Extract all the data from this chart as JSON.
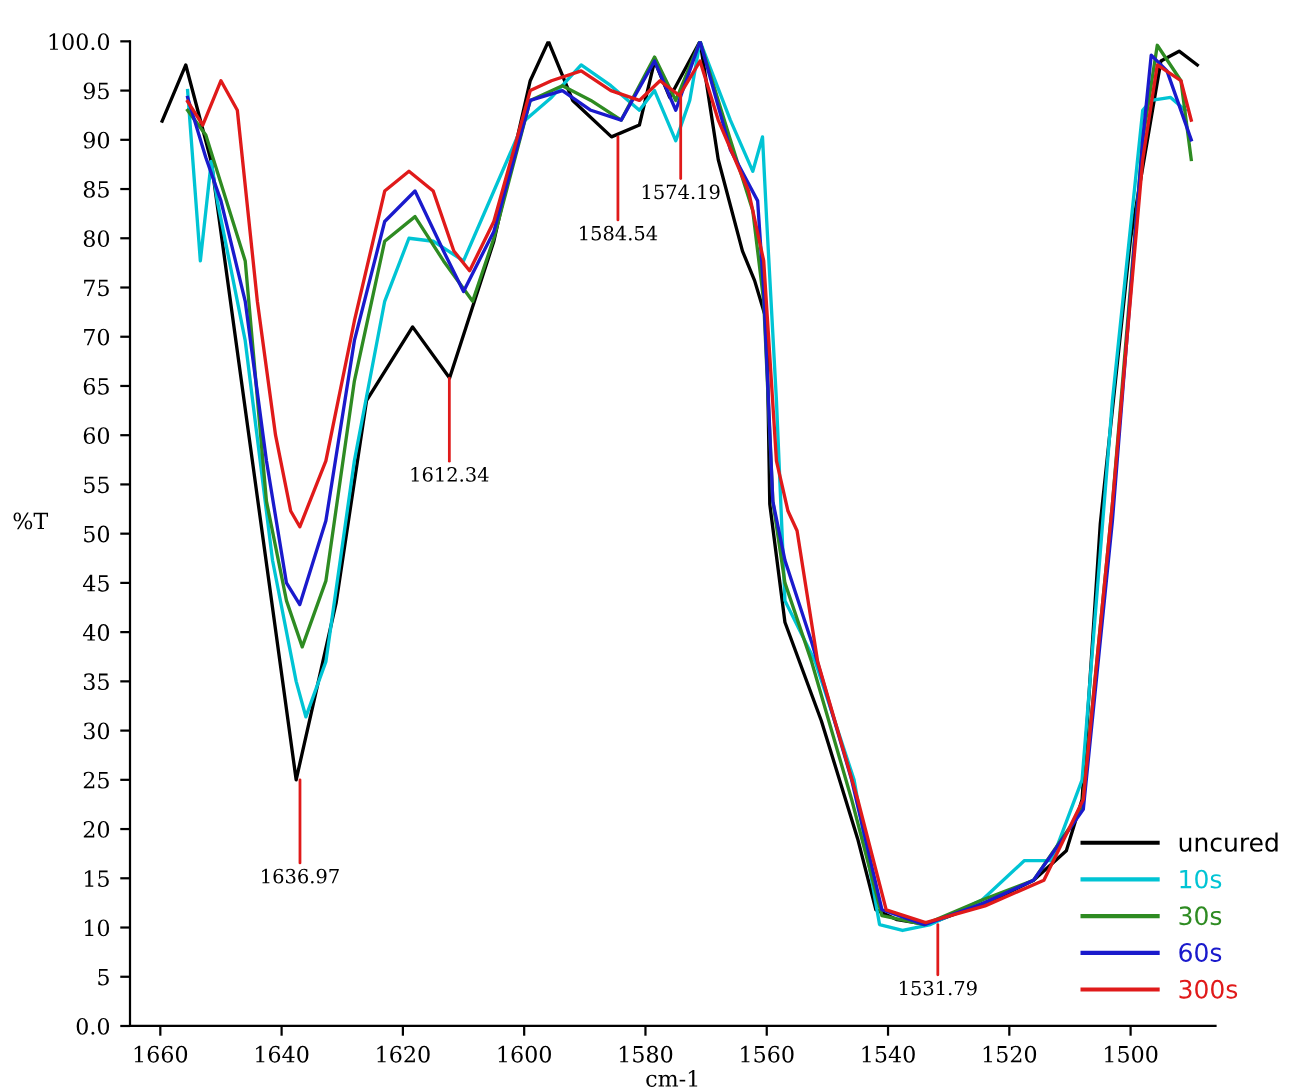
{
  "chart_data": {
    "type": "line",
    "xlabel": "cm-1",
    "ylabel": "%T",
    "xlim": [
      1665,
      1486
    ],
    "ylim": [
      0,
      100
    ],
    "xticks": [
      1660,
      1640,
      1620,
      1600,
      1580,
      1560,
      1540,
      1520,
      1500
    ],
    "yticks": [
      {
        "value": 0,
        "label": "0.0"
      },
      5,
      10,
      15,
      20,
      25,
      30,
      35,
      40,
      45,
      50,
      55,
      60,
      65,
      70,
      75,
      80,
      85,
      90,
      95,
      {
        "value": 100,
        "label": "100.0"
      }
    ],
    "grid": false,
    "legend": "bottom right",
    "marker": "none",
    "line_style": "solid",
    "series": [
      {
        "name": "uncured",
        "color": "#000000",
        "x": [
          1659.7,
          1655.8,
          1651.6,
          1637.6,
          1631,
          1626,
          1618.4,
          1612.3,
          1605,
          1599,
          1596,
          1592,
          1585.6,
          1581,
          1578.5,
          1576,
          1571,
          1568,
          1564,
          1562,
          1560,
          1559.5,
          1557,
          1551,
          1545,
          1542,
          1538.5,
          1533.5,
          1522,
          1516,
          1510.6,
          1508,
          1505,
          1500,
          1495,
          1492,
          1489
        ],
        "values": [
          91.9,
          97.6,
          87.8,
          25,
          43,
          63.5,
          71,
          65.8,
          79.7,
          96,
          100,
          94,
          90.3,
          91.5,
          98,
          94.3,
          100,
          88,
          78.7,
          75.7,
          71.6,
          53,
          41,
          31,
          19,
          11.8,
          10.8,
          10.3,
          13,
          14.8,
          17.8,
          23,
          51,
          80,
          98,
          99,
          97.6
        ]
      },
      {
        "name": "10s",
        "color": "#00c4d4",
        "x": [
          1655.5,
          1653.4,
          1651.6,
          1650.6,
          1646,
          1641.5,
          1637.6,
          1636,
          1632.7,
          1628,
          1623,
          1619,
          1615,
          1610,
          1605,
          1600,
          1595.5,
          1590.6,
          1585.7,
          1581,
          1578.5,
          1575,
          1572.7,
          1571,
          1566,
          1562.3,
          1560.7,
          1560,
          1558.4,
          1557,
          1552,
          1545.6,
          1541.4,
          1537.6,
          1533,
          1524.5,
          1517.5,
          1513,
          1508,
          1503,
          1498,
          1496.6,
          1493.4,
          1491
        ],
        "values": [
          95,
          77.7,
          87.8,
          83.8,
          69.6,
          47.3,
          35,
          31.4,
          37,
          57.4,
          73.6,
          80,
          79.7,
          77.7,
          84.8,
          91.9,
          94.3,
          97.6,
          95.5,
          93,
          95,
          89.9,
          94,
          100,
          92,
          86.8,
          90.3,
          81.7,
          63.5,
          43.2,
          37,
          25,
          10.3,
          9.7,
          10.3,
          12.8,
          16.8,
          16.8,
          25,
          63.5,
          93,
          94,
          94.3,
          93
        ]
      },
      {
        "name": "30s",
        "color": "#2e8b22",
        "x": [
          1655.5,
          1652.5,
          1646,
          1642.5,
          1639.2,
          1636.6,
          1632.7,
          1628,
          1623,
          1618,
          1613.3,
          1608.5,
          1605,
          1599,
          1593.7,
          1589,
          1584,
          1578.5,
          1575,
          1571,
          1566,
          1562.3,
          1560.5,
          1559,
          1557,
          1552.6,
          1546,
          1541,
          1534,
          1524.5,
          1516,
          1508,
          1503,
          1498,
          1495.6,
          1491.7,
          1490
        ],
        "values": [
          93,
          90.5,
          77.7,
          53.3,
          43.2,
          38.5,
          45.2,
          65.5,
          79.7,
          82.2,
          77.7,
          73.6,
          80,
          94,
          95.5,
          94,
          92,
          98.4,
          94,
          100,
          90,
          82.8,
          73.6,
          53.3,
          45,
          37,
          23,
          11.2,
          10.3,
          12.8,
          14.8,
          22,
          53,
          90,
          99.6,
          96,
          88
        ]
      },
      {
        "name": "60s",
        "color": "#1a1acc",
        "x": [
          1655.5,
          1652.5,
          1650,
          1646,
          1642.5,
          1639.2,
          1637,
          1632.7,
          1628,
          1623,
          1618,
          1613.3,
          1610,
          1605,
          1599,
          1593.7,
          1589,
          1584,
          1578.5,
          1575,
          1571,
          1566,
          1561.5,
          1560.5,
          1559,
          1557,
          1552.6,
          1546,
          1541,
          1534,
          1524.5,
          1516,
          1507.8,
          1503,
          1498,
          1496.6,
          1494,
          1490
        ],
        "values": [
          94.3,
          88.2,
          83.8,
          73.6,
          57.4,
          45,
          42.8,
          51.3,
          69.6,
          81.7,
          84.8,
          78.7,
          74.6,
          80.7,
          94,
          95,
          93,
          92,
          98,
          93,
          100,
          89,
          83.8,
          74.6,
          53.3,
          47.3,
          39,
          25,
          11.8,
          10.3,
          12.4,
          14.8,
          22,
          51.3,
          90,
          98.6,
          97,
          90
        ]
      },
      {
        "name": "300s",
        "color": "#e01a1a",
        "x": [
          1655.5,
          1653,
          1650,
          1647.3,
          1644,
          1641,
          1638.5,
          1637,
          1632.7,
          1628,
          1623,
          1619,
          1615,
          1611.6,
          1609,
          1605,
          1599,
          1595.5,
          1590.6,
          1585.7,
          1581,
          1577.6,
          1574.4,
          1571,
          1568,
          1563,
          1560.5,
          1558.4,
          1556.5,
          1555,
          1551.6,
          1545,
          1540.3,
          1533.8,
          1524,
          1514.3,
          1507.8,
          1503,
          1498,
          1495.6,
          1491.7,
          1490
        ],
        "values": [
          93.9,
          91.5,
          96,
          93,
          73.6,
          60,
          52.3,
          50.7,
          57.4,
          71.6,
          84.8,
          86.8,
          84.8,
          78.7,
          76.7,
          81.7,
          95,
          96,
          97,
          95,
          94,
          96,
          94.5,
          98,
          92,
          84.8,
          77.7,
          57.4,
          52.3,
          50.3,
          37,
          23,
          11.8,
          10.5,
          12.2,
          14.8,
          23,
          53,
          88,
          97.6,
          96,
          92
        ]
      }
    ],
    "annotations": [
      {
        "text": "1636.97",
        "x": 1636.97,
        "y": 25
      },
      {
        "text": "1612.34",
        "x": 1612.34,
        "y": 65.8
      },
      {
        "text": "1584.54",
        "x": 1584.54,
        "y": 90.3
      },
      {
        "text": "1574.19",
        "x": 1574.19,
        "y": 94.5
      },
      {
        "text": "1531.79",
        "x": 1531.79,
        "y": 10.3
      }
    ]
  }
}
